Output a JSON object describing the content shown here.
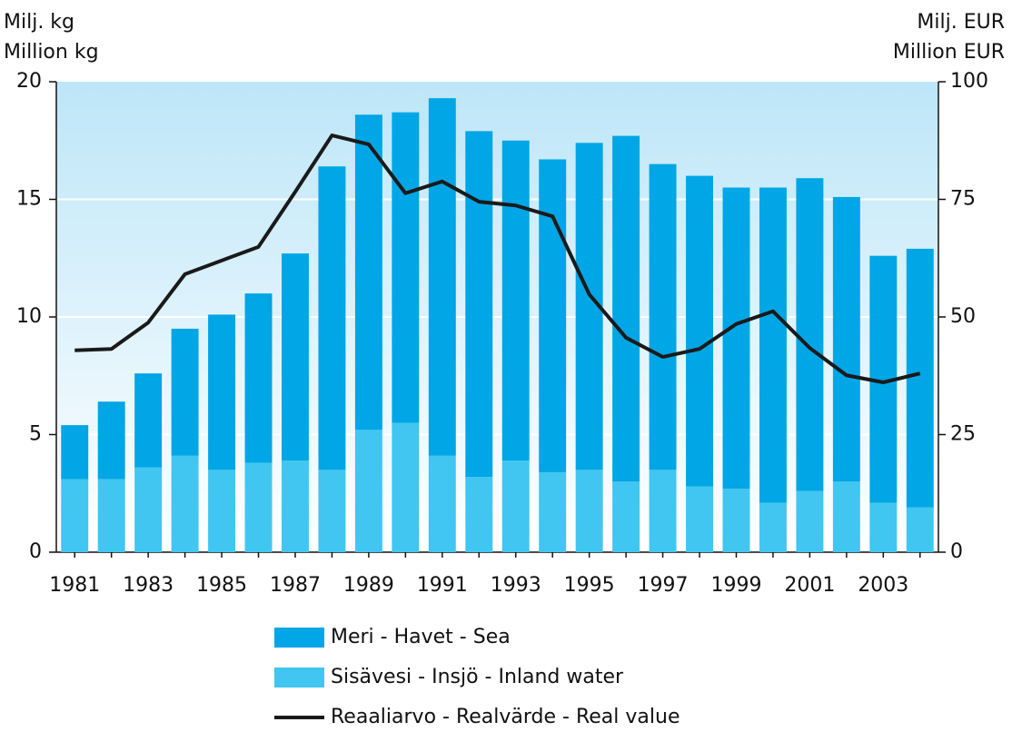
{
  "chart_data": {
    "type": "bar",
    "stacked": true,
    "y_label": [
      "Milj. kg",
      "Million kg"
    ],
    "y2_label": [
      "Milj. EUR",
      "Million EUR"
    ],
    "categories": [
      "1981",
      null,
      "1983",
      null,
      "1985",
      null,
      "1987",
      null,
      "1989",
      null,
      "1991",
      null,
      "1993",
      null,
      "1995",
      null,
      "1997",
      null,
      "1999",
      null,
      "2001",
      null,
      "2003",
      null
    ],
    "series": [
      {
        "name": "Meri - Havet - Sea",
        "type": "bar",
        "color": "#00a6e6",
        "values": [
          2.3,
          3.3,
          4.0,
          5.4,
          6.6,
          7.2,
          8.8,
          12.9,
          13.4,
          13.2,
          15.2,
          14.7,
          13.6,
          13.3,
          13.9,
          14.7,
          13.0,
          13.2,
          12.8,
          13.4,
          13.3,
          12.1,
          10.5,
          11.0
        ]
      },
      {
        "name": "Sisävesi - Insjö - Inland water",
        "type": "bar",
        "color": "#40c6f0",
        "values": [
          3.1,
          3.1,
          3.6,
          4.1,
          3.5,
          3.8,
          3.9,
          3.5,
          5.2,
          5.5,
          4.1,
          3.2,
          3.9,
          3.4,
          3.5,
          3.0,
          3.5,
          2.8,
          2.7,
          2.1,
          2.6,
          3.0,
          2.1,
          1.9
        ]
      },
      {
        "name": "Reaaliarvo - Realvärde - Real value",
        "type": "line",
        "axis": "y2",
        "color": "#1a1a1a",
        "values": [
          42.9,
          43.2,
          48.8,
          59.1,
          62.0,
          64.9,
          76.6,
          88.6,
          86.7,
          76.3,
          78.8,
          74.5,
          73.7,
          71.4,
          54.8,
          45.6,
          41.5,
          43.2,
          48.5,
          51.2,
          43.4,
          37.6,
          36.1,
          38.0
        ]
      }
    ],
    "ylim": [
      0,
      20
    ],
    "yticks": [
      0,
      5,
      10,
      15,
      20
    ],
    "y2lim": [
      0,
      100
    ],
    "y2ticks": [
      0,
      25,
      50,
      75,
      100
    ],
    "grid": true,
    "legend": "bottom"
  }
}
